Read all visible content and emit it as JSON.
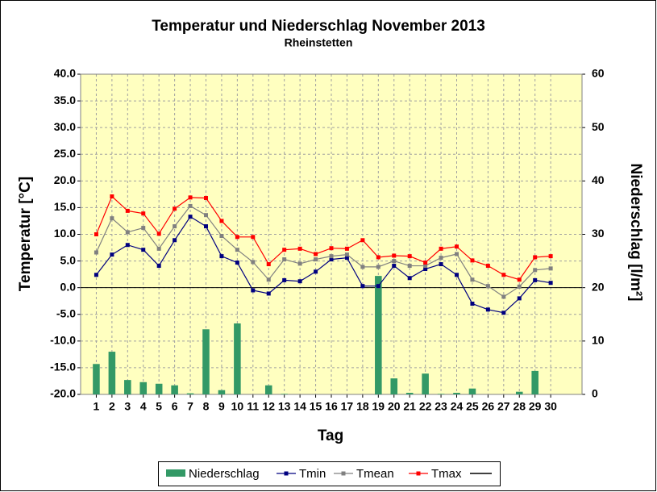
{
  "chart_data": {
    "type": "bar",
    "title": "Temperatur und Niederschlag  November 2013",
    "subtitle": "Rheinstetten",
    "x_label": "Tag",
    "y_label": "Temperatur [°C]",
    "y2_label": "Niederschlag [l/m²]",
    "x": [
      1,
      2,
      3,
      4,
      5,
      6,
      7,
      8,
      9,
      10,
      11,
      12,
      13,
      14,
      15,
      16,
      17,
      18,
      19,
      20,
      21,
      22,
      23,
      24,
      25,
      26,
      27,
      28,
      29,
      30
    ],
    "xlim": [
      0,
      32
    ],
    "xticks": [
      1,
      2,
      3,
      4,
      5,
      6,
      7,
      8,
      9,
      10,
      11,
      12,
      13,
      14,
      15,
      16,
      17,
      18,
      19,
      20,
      21,
      22,
      23,
      24,
      25,
      26,
      27,
      28,
      29,
      30
    ],
    "ylim": [
      -20,
      40
    ],
    "yticks": [
      {
        "value": -20,
        "label": "-20.0"
      },
      {
        "value": -15,
        "label": "-15.0"
      },
      {
        "value": -10,
        "label": "-10.0"
      },
      {
        "value": -5,
        "label": "-5.0"
      },
      {
        "value": 0,
        "label": "0.0"
      },
      {
        "value": 5,
        "label": "5.0"
      },
      {
        "value": 10,
        "label": "10.0"
      },
      {
        "value": 15,
        "label": "15.0"
      },
      {
        "value": 20,
        "label": "20.0"
      },
      {
        "value": 25,
        "label": "25.0"
      },
      {
        "value": 30,
        "label": "30.0"
      },
      {
        "value": 35,
        "label": "35.0"
      },
      {
        "value": 40,
        "label": "40.0"
      }
    ],
    "y2lim": [
      0,
      60
    ],
    "y2ticks": [
      0,
      10,
      20,
      30,
      40,
      50,
      60
    ],
    "grid": true,
    "legend": "bottom",
    "series": [
      {
        "name": "Niederschlag",
        "type": "bar",
        "axis": "y2",
        "color": "#339966",
        "values": [
          5.7,
          8.0,
          2.7,
          2.3,
          2.0,
          1.7,
          0.2,
          12.2,
          0.8,
          13.3,
          0,
          1.7,
          0.1,
          0,
          0,
          0,
          0,
          0,
          22.2,
          3.0,
          0.3,
          3.9,
          0.1,
          0.3,
          1.1,
          0,
          0,
          0.5,
          4.4,
          0
        ]
      },
      {
        "name": "Tmin",
        "type": "line",
        "color": "#000080",
        "values": [
          2.4,
          6.2,
          8.0,
          7.1,
          4.1,
          8.9,
          13.3,
          11.5,
          5.9,
          4.7,
          -0.5,
          -1.1,
          1.4,
          1.2,
          3.0,
          5.3,
          5.6,
          0.3,
          0.3,
          4.1,
          1.8,
          3.5,
          4.4,
          2.4,
          -3.0,
          -4.1,
          -4.7,
          -2.0,
          1.4,
          0.9
        ]
      },
      {
        "name": "Tmean",
        "type": "line",
        "color": "#808080",
        "values": [
          6.6,
          13.0,
          10.4,
          11.2,
          7.3,
          11.5,
          15.3,
          13.6,
          9.7,
          7.1,
          4.8,
          1.5,
          5.3,
          4.5,
          5.3,
          5.9,
          6.2,
          3.9,
          3.9,
          5.0,
          4.1,
          4.1,
          5.6,
          6.3,
          1.5,
          0.3,
          -1.7,
          0.2,
          3.3,
          3.6
        ]
      },
      {
        "name": "Tmax",
        "type": "line",
        "color": "#ff0000",
        "values": [
          10.0,
          17.1,
          14.4,
          13.9,
          10.1,
          14.8,
          16.9,
          16.8,
          12.5,
          9.5,
          9.5,
          4.4,
          7.1,
          7.3,
          6.3,
          7.4,
          7.3,
          8.9,
          5.7,
          6.0,
          5.9,
          4.7,
          7.3,
          7.7,
          5.1,
          4.1,
          2.4,
          1.5,
          5.7,
          5.9
        ]
      }
    ]
  }
}
